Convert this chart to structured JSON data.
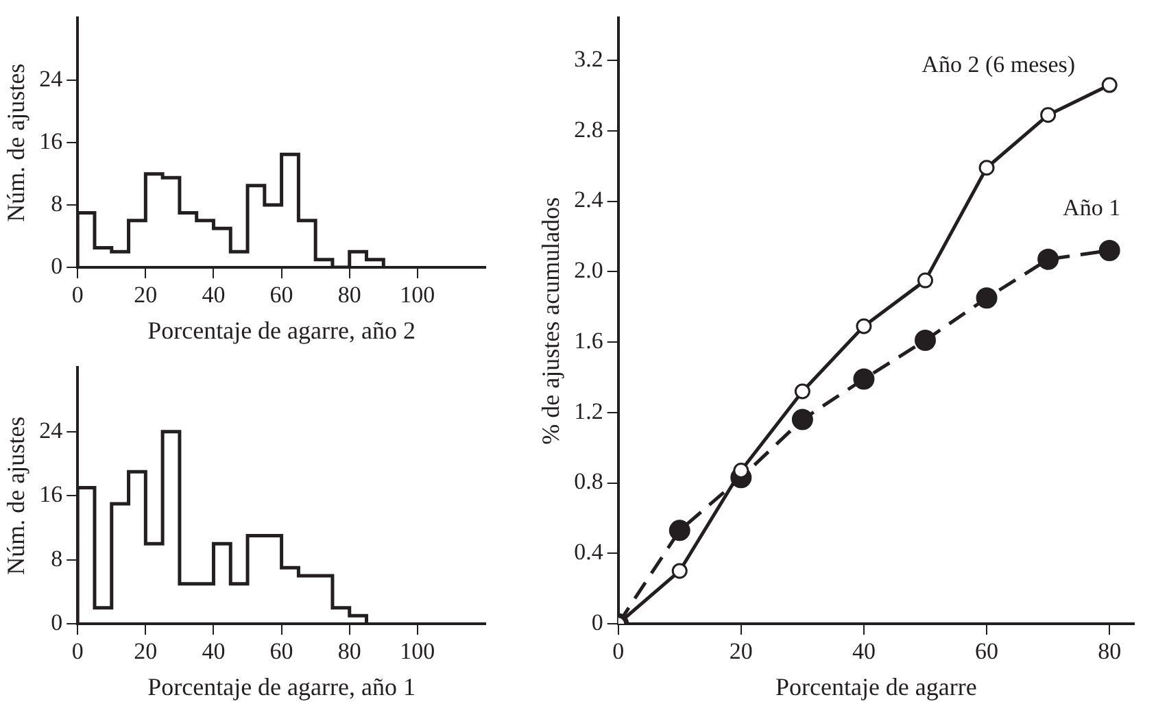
{
  "chart_data": [
    {
      "type": "histogram",
      "xlabel": "Porcentaje de agarre, año 2",
      "ylabel": "Núm. de ajustes",
      "bins": [
        0,
        5,
        10,
        15,
        20,
        25,
        30,
        35,
        40,
        45,
        50,
        55,
        60,
        65,
        70,
        75,
        80,
        85,
        90
      ],
      "values": [
        7,
        2.5,
        2,
        6,
        12,
        11.5,
        7,
        6,
        5,
        2,
        10.5,
        8,
        14.5,
        6,
        1,
        0,
        2,
        1
      ],
      "color": "#231f20",
      "xlim": [
        0,
        120
      ],
      "xticks": [
        0,
        20,
        40,
        60,
        80,
        100
      ],
      "ylim": [
        0,
        32
      ],
      "yticks": [
        0,
        8,
        16,
        24
      ],
      "grid": false,
      "legend": false
    },
    {
      "type": "histogram",
      "xlabel": "Porcentaje de agarre, año 1",
      "ylabel": "Núm. de ajustes",
      "bins": [
        0,
        5,
        10,
        15,
        20,
        25,
        30,
        35,
        40,
        45,
        50,
        55,
        60,
        65,
        70,
        75,
        80,
        85
      ],
      "values": [
        17,
        2,
        15,
        19,
        10,
        24,
        5,
        5,
        10,
        5,
        11,
        11,
        7,
        6,
        6,
        2,
        1
      ],
      "color": "#231f20",
      "xlim": [
        0,
        120
      ],
      "xticks": [
        0,
        20,
        40,
        60,
        80,
        100
      ],
      "ylim": [
        0,
        32
      ],
      "yticks": [
        0,
        8,
        16,
        24
      ],
      "grid": false,
      "legend": false
    },
    {
      "type": "line",
      "xlabel": "Porcentaje de agarre",
      "ylabel": "% de ajustes acumulados",
      "x": [
        0,
        10,
        20,
        30,
        40,
        50,
        60,
        70,
        80
      ],
      "series": [
        {
          "name": "Año 2 (6 meses)",
          "color": "#231f20",
          "line_style": "solid",
          "values": [
            0,
            0.3,
            0.87,
            1.32,
            1.69,
            1.95,
            2.59,
            2.89,
            3.06
          ]
        },
        {
          "name": "Año 1",
          "color": "#231f20",
          "line_style": "dashed",
          "values": [
            0,
            0.53,
            0.83,
            1.16,
            1.39,
            1.61,
            1.85,
            2.07,
            2.12
          ]
        }
      ],
      "marker": "circle",
      "xlim": [
        0,
        84
      ],
      "xticks": [
        0,
        20,
        40,
        60,
        80
      ],
      "ylim": [
        0,
        3.44
      ],
      "yticks": [
        0,
        0.4,
        0.8,
        1.2,
        1.6,
        {
          "value": 2,
          "label": "2.0"
        },
        2.4,
        2.8,
        3.2
      ],
      "grid": false,
      "legend": false
    }
  ]
}
